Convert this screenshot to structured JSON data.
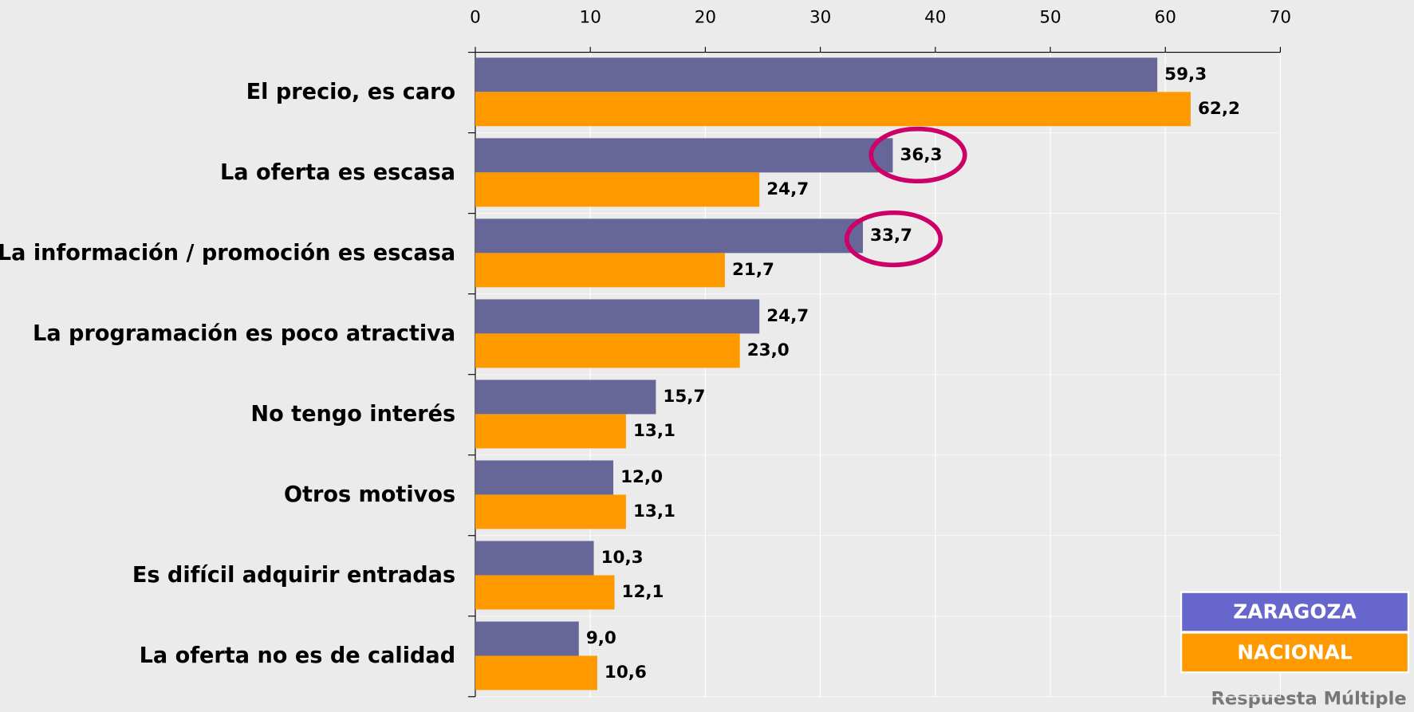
{
  "chart_data": {
    "type": "bar",
    "orientation": "horizontal",
    "categories": [
      "El precio, es caro",
      "La oferta es escasa",
      "La información / promoción es escasa",
      "La programación es poco atractiva",
      "No tengo interés",
      "Otros motivos",
      "Es difícil adquirir entradas",
      "La oferta no es de calidad"
    ],
    "series": [
      {
        "name": "ZARAGOZA",
        "color": "#666699",
        "legend_color": "#6666cc",
        "values": [
          59.3,
          36.3,
          33.7,
          24.7,
          15.7,
          12.0,
          10.3,
          9.0
        ],
        "value_labels": [
          "59,3",
          "36,3",
          "33,7",
          "24,7",
          "15,7",
          "12,0",
          "10,3",
          "9,0"
        ]
      },
      {
        "name": "NACIONAL",
        "color": "#ff9900",
        "legend_color": "#ff9900",
        "values": [
          62.2,
          24.7,
          21.7,
          23.0,
          13.1,
          13.1,
          12.1,
          10.6
        ],
        "value_labels": [
          "62,2",
          "24,7",
          "21,7",
          "23,0",
          "13,1",
          "13,1",
          "12,1",
          "10,6"
        ]
      }
    ],
    "xlim": [
      0,
      70
    ],
    "xticks": [
      0,
      10,
      20,
      30,
      40,
      50,
      60,
      70
    ],
    "grid": true,
    "legend": "lower right",
    "annotation": "Respuesta Múltiple"
  }
}
